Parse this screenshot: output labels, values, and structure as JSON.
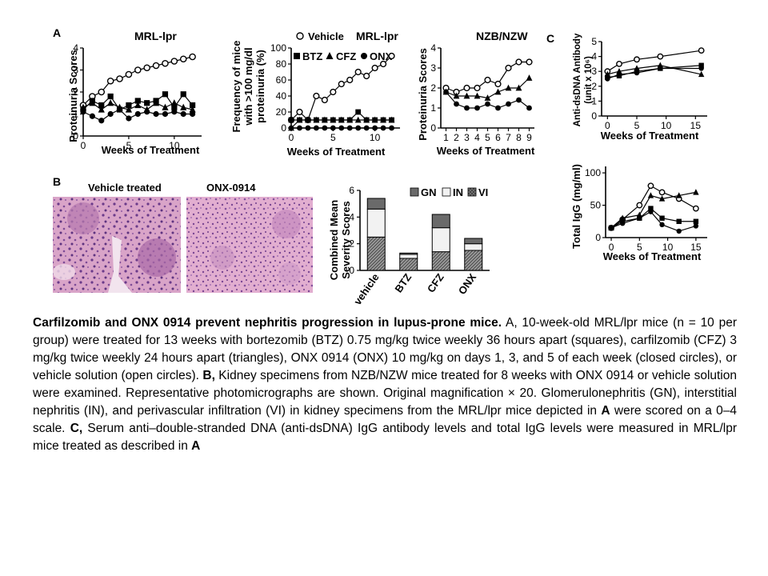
{
  "panels": {
    "a": {
      "letter": "A",
      "plot1": {
        "title": "MRL-lpr",
        "ylabel": "Proteinuria Scores",
        "xlabel": "Weeks of Treatment",
        "xticks": [
          "0",
          "5",
          "10"
        ],
        "yticks": [
          "0",
          "1",
          "2",
          "3",
          "4"
        ]
      },
      "plot2": {
        "title": "MRL-lpr",
        "ylabel_lines": [
          "Frequency of mice",
          "with >100 mg/dl",
          "proteinuria (%)"
        ],
        "xlabel": "Weeks of Treatment",
        "xticks": [
          "0",
          "5",
          "10"
        ],
        "yticks": [
          "0",
          "20",
          "40",
          "60",
          "80",
          "100"
        ],
        "legend": [
          "Vehicle",
          "BTZ",
          "CFZ",
          "ONX"
        ]
      }
    },
    "nzb": {
      "title": "NZB/NZW",
      "ylabel": "Proteinuria Scores",
      "xlabel": "Weeks of Treatment",
      "xticks": [
        "1",
        "2",
        "3",
        "4",
        "5",
        "6",
        "7",
        "8",
        "9"
      ],
      "yticks": [
        "0",
        "1",
        "2",
        "3",
        "4"
      ]
    },
    "c": {
      "letter": "C",
      "top": {
        "ylabel_lines": [
          "Anti-dsDNA Antibody",
          "(unit x 10⁶)"
        ],
        "xlabel": "Weeks of Treatment",
        "xticks": [
          "0",
          "5",
          "10",
          "15"
        ],
        "yticks": [
          "0",
          "1",
          "2",
          "3",
          "4",
          "5"
        ]
      },
      "bottom": {
        "ylabel": "Total IgG (mg/ml)",
        "xlabel": "Weeks of Treatment",
        "xticks": [
          "0",
          "5",
          "10",
          "15"
        ],
        "yticks": [
          "0",
          "50",
          "100"
        ]
      }
    },
    "b": {
      "letter": "B",
      "photo1_title": "Vehicle treated",
      "photo2_title": "ONX-0914",
      "bar": {
        "ylabel_lines": [
          "Combined Mean",
          "Severity Scores"
        ],
        "yticks": [
          "0",
          "2",
          "4",
          "6"
        ],
        "legend": [
          "GN",
          "IN",
          "VI"
        ]
      }
    }
  },
  "chart_data": [
    {
      "type": "line",
      "title": "MRL-lpr",
      "xlabel": "Weeks of Treatment",
      "ylabel": "Proteinuria Scores",
      "xlim": [
        0,
        13
      ],
      "ylim": [
        0,
        4
      ],
      "x": [
        0,
        1,
        2,
        3,
        4,
        5,
        6,
        7,
        8,
        9,
        10,
        11,
        12
      ],
      "series": [
        {
          "name": "Vehicle",
          "marker": "open-circle",
          "values": [
            1.4,
            1.8,
            2.0,
            2.5,
            2.6,
            2.8,
            3.0,
            3.1,
            3.2,
            3.3,
            3.4,
            3.5,
            3.6
          ]
        },
        {
          "name": "BTZ",
          "marker": "square",
          "values": [
            1.2,
            1.6,
            1.4,
            1.8,
            1.2,
            1.4,
            1.6,
            1.5,
            1.6,
            1.9,
            1.3,
            1.9,
            1.4
          ]
        },
        {
          "name": "CFZ",
          "marker": "triangle",
          "values": [
            1.3,
            1.5,
            1.2,
            1.5,
            1.3,
            1.2,
            1.4,
            1.2,
            1.5,
            1.3,
            1.5,
            1.3,
            1.2
          ]
        },
        {
          "name": "ONX",
          "marker": "closed-circle",
          "values": [
            1.1,
            0.9,
            0.7,
            1.0,
            1.2,
            0.8,
            1.0,
            1.1,
            1.0,
            1.0,
            1.1,
            1.0,
            1.0
          ]
        }
      ]
    },
    {
      "type": "line",
      "title": "MRL-lpr",
      "xlabel": "Weeks of Treatment",
      "ylabel": "Frequency of mice with >100 mg/dl proteinuria (%)",
      "xlim": [
        0,
        13
      ],
      "ylim": [
        0,
        100
      ],
      "x": [
        0,
        1,
        2,
        3,
        4,
        5,
        6,
        7,
        8,
        9,
        10,
        11,
        12
      ],
      "series": [
        {
          "name": "Vehicle",
          "marker": "open-circle",
          "values": [
            10,
            20,
            10,
            40,
            35,
            45,
            55,
            60,
            70,
            65,
            75,
            80,
            90
          ]
        },
        {
          "name": "BTZ",
          "marker": "square",
          "values": [
            10,
            10,
            10,
            10,
            10,
            10,
            10,
            10,
            20,
            10,
            10,
            10,
            10
          ]
        },
        {
          "name": "CFZ",
          "marker": "triangle",
          "values": [
            0,
            10,
            10,
            10,
            10,
            10,
            10,
            10,
            10,
            10,
            10,
            10,
            10
          ]
        },
        {
          "name": "ONX",
          "marker": "closed-circle",
          "values": [
            0,
            0,
            0,
            0,
            0,
            0,
            0,
            0,
            0,
            0,
            0,
            0,
            0
          ]
        }
      ]
    },
    {
      "type": "line",
      "title": "NZB/NZW",
      "xlabel": "Weeks of Treatment",
      "ylabel": "Proteinuria Scores",
      "xlim": [
        0.5,
        9.5
      ],
      "ylim": [
        0,
        4
      ],
      "x": [
        1,
        2,
        3,
        4,
        5,
        6,
        7,
        8,
        9
      ],
      "series": [
        {
          "name": "Vehicle",
          "marker": "open-circle",
          "values": [
            2.0,
            1.8,
            2.0,
            2.0,
            2.4,
            2.2,
            3.0,
            3.3,
            3.3
          ]
        },
        {
          "name": "CFZ",
          "marker": "triangle",
          "values": [
            1.8,
            1.6,
            1.6,
            1.6,
            1.5,
            1.8,
            2.0,
            2.0,
            2.5
          ]
        },
        {
          "name": "ONX",
          "marker": "closed-circle",
          "values": [
            1.8,
            1.2,
            1.0,
            1.0,
            1.2,
            1.0,
            1.2,
            1.4,
            1.0
          ]
        }
      ]
    },
    {
      "type": "line",
      "xlabel": "Weeks of Treatment",
      "ylabel": "Anti-dsDNA Antibody (unit x 10⁶)",
      "xlim": [
        -1,
        17
      ],
      "ylim": [
        0,
        5
      ],
      "x": [
        0,
        2,
        5,
        9,
        16
      ],
      "series": [
        {
          "name": "Vehicle",
          "marker": "open-circle",
          "values": [
            3.0,
            3.5,
            3.8,
            4.0,
            4.4
          ]
        },
        {
          "name": "BTZ",
          "marker": "square",
          "values": [
            2.6,
            2.7,
            3.0,
            3.2,
            3.4
          ]
        },
        {
          "name": "CFZ",
          "marker": "triangle",
          "values": [
            2.8,
            3.0,
            3.2,
            3.4,
            2.8
          ]
        },
        {
          "name": "ONX",
          "marker": "closed-circle",
          "values": [
            2.5,
            2.8,
            2.9,
            3.2,
            3.2
          ]
        }
      ]
    },
    {
      "type": "line",
      "xlabel": "Weeks of Treatment",
      "ylabel": "Total IgG (mg/ml)",
      "xlim": [
        -1,
        17
      ],
      "ylim": [
        0,
        110
      ],
      "x": [
        0,
        2,
        5,
        7,
        9,
        12,
        15
      ],
      "series": [
        {
          "name": "Vehicle",
          "marker": "open-circle",
          "values": [
            15,
            28,
            50,
            80,
            70,
            60,
            45
          ]
        },
        {
          "name": "CFZ",
          "marker": "triangle",
          "values": [
            15,
            30,
            35,
            65,
            60,
            65,
            70
          ]
        },
        {
          "name": "BTZ",
          "marker": "square",
          "values": [
            15,
            25,
            30,
            45,
            30,
            25,
            25
          ]
        },
        {
          "name": "ONX",
          "marker": "closed-circle",
          "values": [
            15,
            22,
            30,
            40,
            20,
            10,
            18
          ]
        }
      ]
    },
    {
      "type": "bar",
      "stacked": true,
      "ylabel": "Combined Mean Severity Scores",
      "ylim": [
        0,
        6
      ],
      "categories": [
        "vehicle",
        "BTZ",
        "CFZ",
        "ONX"
      ],
      "series": [
        {
          "name": "VI",
          "color": "#8a8a8a",
          "values": [
            2.5,
            0.9,
            1.4,
            1.5
          ]
        },
        {
          "name": "IN",
          "color": "#f2f2f2",
          "values": [
            2.1,
            0.3,
            1.8,
            0.5
          ]
        },
        {
          "name": "GN",
          "color": "#6a6a6a",
          "values": [
            0.8,
            0.1,
            1.0,
            0.4
          ]
        }
      ]
    }
  ],
  "caption": {
    "title_bold": "Carfilzomib and ONX 0914 prevent nephritis progression in lupus-prone mice.",
    "part_a": " A, 10-week-old MRL/lpr mice (n = 10 per group) were treated for 13 weeks with bortezomib (BTZ) 0.75 mg/kg twice weekly 36 hours apart (squares), carfilzomib (CFZ) 3 mg/kg twice weekly 24 hours apart (triangles), ONX 0914 (ONX) 10 mg/kg on days 1, 3, and 5 of each week (closed circles), or vehicle solution (open circles). ",
    "b_bold": "B,",
    "part_b": " Kidney specimens from NZB/NZW mice treated for 8 weeks with ONX 0914 or vehicle solution were examined. Representative photomicrographs are shown. Original magnification × 20. Glomerulonephritis (GN), interstitial nephritis (IN), and perivascular infiltration (VI) in kidney specimens from the MRL/lpr mice depicted in ",
    "a_bold_1": "A",
    "part_b2": " were scored on a 0–4 scale. ",
    "c_bold": "C,",
    "part_c": " Serum anti–double-stranded DNA (anti-dsDNA) IgG antibody levels and total IgG levels were measured in MRL/lpr mice treated as described in ",
    "a_bold_2": "A"
  }
}
